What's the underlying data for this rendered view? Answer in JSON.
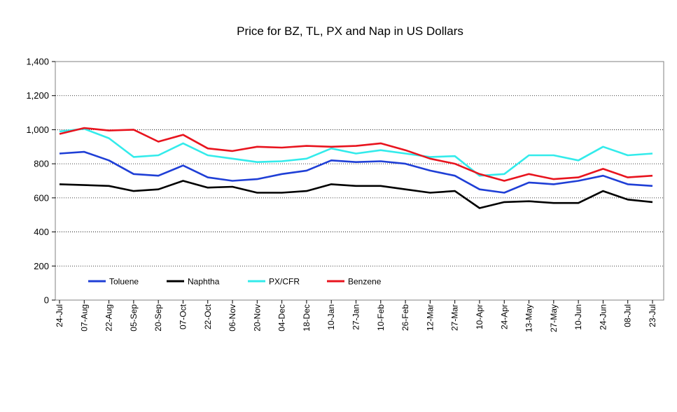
{
  "chart_data": {
    "type": "line",
    "title": "Price for BZ, TL, PX and Nap in US Dollars",
    "xlabel": "",
    "ylabel": "",
    "ylim": [
      0,
      1400
    ],
    "yticks": [
      0,
      200,
      400,
      600,
      800,
      1000,
      1200,
      1400
    ],
    "ytick_labels": [
      "0",
      "200",
      "400",
      "600",
      "800",
      "1,000",
      "1,200",
      "1,400"
    ],
    "grid": "horizontal dotted",
    "legend_position": "bottom-left inside plot",
    "categories": [
      "24-Jul",
      "07-Aug",
      "22-Aug",
      "05-Sep",
      "20-Sep",
      "07-Oct",
      "22-Oct",
      "06-Nov",
      "20-Nov",
      "04-Dec",
      "18-Dec",
      "10-Jan",
      "27-Jan",
      "10-Feb",
      "26-Feb",
      "12-Mar",
      "27-Mar",
      "10-Apr",
      "24-Apr",
      "13-May",
      "27-May",
      "10-Jun",
      "24-Jun",
      "08-Jul",
      "23-Jul"
    ],
    "series": [
      {
        "name": "Toluene",
        "color": "#1f3fd6",
        "values": [
          860,
          870,
          820,
          740,
          730,
          790,
          720,
          700,
          710,
          740,
          760,
          820,
          810,
          815,
          800,
          760,
          730,
          650,
          630,
          690,
          680,
          700,
          730,
          680,
          670
        ]
      },
      {
        "name": "Naphtha",
        "color": "#000000",
        "values": [
          680,
          675,
          670,
          640,
          650,
          700,
          660,
          665,
          630,
          630,
          640,
          680,
          670,
          670,
          650,
          630,
          640,
          540,
          575,
          580,
          570,
          570,
          640,
          590,
          575
        ]
      },
      {
        "name": "PX/CFR",
        "color": "#33ebeb",
        "values": [
          990,
          1005,
          950,
          840,
          850,
          920,
          850,
          830,
          810,
          815,
          830,
          890,
          860,
          880,
          860,
          840,
          845,
          730,
          740,
          850,
          850,
          820,
          900,
          850,
          860
        ]
      },
      {
        "name": "Benzene",
        "color": "#e8141e",
        "values": [
          975,
          1010,
          995,
          1000,
          930,
          970,
          890,
          875,
          900,
          895,
          905,
          900,
          905,
          920,
          880,
          830,
          800,
          740,
          700,
          740,
          710,
          720,
          770,
          720,
          730
        ]
      }
    ]
  }
}
